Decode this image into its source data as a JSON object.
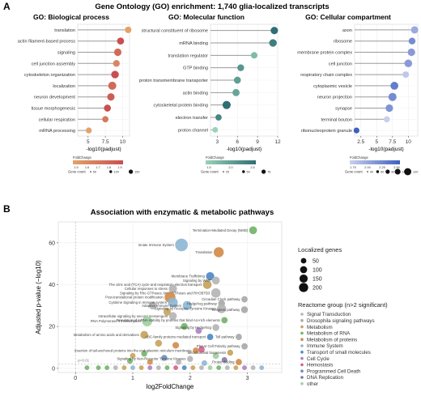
{
  "panel_a": {
    "letter": "A",
    "title": "Gene Ontology (GO) enrichment: 1,740 glia-localized transcripts",
    "legend_foldchange_title": "FoldChange",
    "legend_genecount_title": "Gene count",
    "xlabel": "-log10(padjust)",
    "colors": {
      "bp": [
        "#e2a36a",
        "#c94f4f"
      ],
      "mf": [
        "#9ad2b8",
        "#2e6f73"
      ],
      "cc": [
        "#c8d0ee",
        "#3e5fbf"
      ]
    }
  },
  "panel_b": {
    "letter": "B",
    "title": "Association with enzymatic & metabolic pathways",
    "xlabel": "log2FoldChange",
    "ylabel": "Adjusted p-value (−log10)",
    "threshold_label": "p=0.01",
    "size_legend_title": "Localized genes",
    "size_legend_values": [
      "50",
      "100",
      "150",
      "200"
    ],
    "group_legend_title": "Reactome group (n>2 significant)",
    "groups": [
      {
        "name": "Signal Transduction",
        "color": "#b5b5b5"
      },
      {
        "name": "Drosophila signaling pathways",
        "color": "#a9a9a9"
      },
      {
        "name": "Metabolism",
        "color": "#c6a35a"
      },
      {
        "name": "Metabolism of RNA",
        "color": "#73b46a"
      },
      {
        "name": "Metabolism of proteins",
        "color": "#d08c4b"
      },
      {
        "name": "Immune System",
        "color": "#8fb7d6"
      },
      {
        "name": "Transport of small molecules",
        "color": "#4f89c4"
      },
      {
        "name": "Cell Cycle",
        "color": "#b07fc2"
      },
      {
        "name": "Hemostasis",
        "color": "#d3608c"
      },
      {
        "name": "Programmed Cell Death",
        "color": "#6a8fb5"
      },
      {
        "name": "DNA Replication",
        "color": "#7a7aa8"
      },
      {
        "name": "other",
        "color": "#9fcfa0"
      }
    ]
  },
  "chart_data": [
    {
      "type": "lollipop",
      "title": "GO: Biological process",
      "xlabel": "-log10(padjust)",
      "xlim": [
        3.5,
        11
      ],
      "xticks": [
        5.0,
        7.5,
        10.0
      ],
      "categories": [
        "translation",
        "actin filament-based process",
        "signaling",
        "cell junction assembly",
        "cytoskeleton organization",
        "localization",
        "neuron development",
        "tissue morphogenesis",
        "cellular respiration",
        "mRNA processing"
      ],
      "values": [
        10.8,
        9.7,
        9.3,
        9.1,
        8.9,
        8.5,
        8.3,
        7.8,
        7.5,
        5.1
      ],
      "fold_change": [
        1.5,
        1.8,
        1.7,
        1.6,
        1.8,
        1.7,
        1.75,
        1.8,
        1.65,
        1.5
      ],
      "gene_count": [
        60,
        80,
        100,
        70,
        110,
        140,
        100,
        80,
        50,
        40
      ],
      "foldchange_legend_ticks": [
        "1.5",
        "1.6",
        "1.7",
        "1.8",
        "1.9"
      ],
      "genecount_legend_ticks": [
        "50",
        "100",
        "150"
      ]
    },
    {
      "type": "lollipop",
      "title": "GO: Molecular function",
      "xlabel": "-log10(padjust)",
      "xlim": [
        2,
        12
      ],
      "xticks": [
        3,
        6,
        9,
        12
      ],
      "categories": [
        "structural constituent of ribosome",
        "mRNA binding",
        "translation regulator",
        "GTP binding",
        "proton transmembrane transporter",
        "actin binding",
        "cytoskeletal protein binding",
        "electron transfer",
        "proton channel"
      ],
      "values": [
        11.5,
        11.3,
        8.5,
        6.5,
        6.0,
        5.8,
        4.4,
        3.2,
        2.7
      ],
      "fold_change": [
        2.8,
        2.6,
        1.8,
        2.3,
        2.2,
        2.1,
        2.8,
        2.5,
        1.5
      ],
      "gene_count": [
        50,
        55,
        30,
        35,
        40,
        45,
        70,
        25,
        15
      ],
      "foldchange_legend_ticks": [
        "1.5",
        "2.0",
        "2.5"
      ],
      "genecount_legend_ticks": [
        "25",
        "50",
        "75"
      ]
    },
    {
      "type": "lollipop",
      "title": "GO: Cellular compartment",
      "xlabel": "-log10(padjust)",
      "xlim": [
        1.5,
        11.5
      ],
      "xticks": [
        2.5,
        5.0,
        7.5,
        10.0
      ],
      "categories": [
        "axon",
        "ribosome",
        "membrane protein complex",
        "cell junction",
        "respiratory chain complex",
        "cytoplasmic vesicle",
        "neuron projection",
        "synapse",
        "terminal bouton",
        "ribonucleoprotein granule"
      ],
      "values": [
        11.0,
        10.6,
        10.5,
        10.0,
        9.6,
        7.8,
        7.5,
        7.0,
        6.6,
        1.8
      ],
      "fold_change": [
        2.0,
        2.2,
        2.1,
        2.1,
        1.8,
        2.3,
        2.2,
        2.15,
        1.75,
        2.5
      ],
      "gene_count": [
        80,
        60,
        90,
        100,
        50,
        110,
        120,
        90,
        40,
        30
      ],
      "foldchange_legend_ticks": [
        "1.75",
        "2.00",
        "2.25",
        "2.50"
      ],
      "genecount_legend_ticks": [
        "40",
        "60",
        "80",
        "100",
        "120"
      ]
    },
    {
      "type": "scatter",
      "title": "Association with enzymatic & metabolic pathways",
      "xlabel": "log2FoldChange",
      "ylabel": "Adjusted p-value (−log10)",
      "xlim": [
        -0.3,
        3.6
      ],
      "ylim": [
        -2,
        70
      ],
      "xticks": [
        0,
        1,
        2,
        3
      ],
      "yticks": [
        0,
        20,
        40,
        60
      ],
      "labeled_points": [
        {
          "label": "Innate Immune System",
          "x": 1.85,
          "y": 59,
          "size": 220,
          "group": "Immune System"
        },
        {
          "label": "Translation",
          "x": 2.5,
          "y": 55.5,
          "size": 120,
          "group": "Metabolism of proteins"
        },
        {
          "label": "Termination-Mediated Decay (NMD)",
          "x": 3.1,
          "y": 66,
          "size": 60,
          "group": "Metabolism of RNA"
        },
        {
          "label": "Membrane Trafficking",
          "x": 2.35,
          "y": 44,
          "size": 70,
          "group": "Transport of small molecules"
        },
        {
          "label": "The citric acid (TCA) cycle and respiratory electron transport",
          "x": 2.3,
          "y": 40,
          "size": 80,
          "group": "Metabolism"
        },
        {
          "label": "Signaling by WNT",
          "x": 2.45,
          "y": 42,
          "size": 60,
          "group": "Signal Transduction"
        },
        {
          "label": "Cellular responses to stress",
          "x": 1.7,
          "y": 38,
          "size": 70,
          "group": "Signal Transduction"
        },
        {
          "label": "Signaling by Rho GTPases, Miro GTPases and RHOBTB3",
          "x": 2.45,
          "y": 36,
          "size": 100,
          "group": "Signal Transduction"
        },
        {
          "label": "Circadian Clock pathway",
          "x": 2.95,
          "y": 33,
          "size": 30,
          "group": "Drosophila signaling pathways"
        },
        {
          "label": "Post-translational protein modification",
          "x": 1.65,
          "y": 34,
          "size": 150,
          "group": "Metabolism of proteins"
        },
        {
          "label": "Cytokine Signaling in Immune system",
          "x": 1.7,
          "y": 31.5,
          "size": 110,
          "group": "Immune System"
        },
        {
          "label": "Adaptive Immune System",
          "x": 1.95,
          "y": 30,
          "size": 90,
          "group": "Immune System"
        },
        {
          "label": "Hedgehog pathway",
          "x": 2.55,
          "y": 31,
          "size": 40,
          "group": "Drosophila signaling pathways"
        },
        {
          "label": "Signaling by Receptor Tyrosine Kinases",
          "x": 2.55,
          "y": 28.5,
          "size": 90,
          "group": "Signal Transduction"
        },
        {
          "label": "Wingless pathway",
          "x": 2.95,
          "y": 28,
          "size": 40,
          "group": "Drosophila signaling pathways"
        },
        {
          "label": "Intracellular signaling by second messengers",
          "x": 1.7,
          "y": 25,
          "size": 60,
          "group": "Signal Transduction"
        },
        {
          "label": "RNA Polymerase II Transcription",
          "x": 1.25,
          "y": 22.5,
          "size": 120,
          "group": "other"
        },
        {
          "label": "Regulation of mRNA stability by proteins that bind AU-rich elements",
          "x": 2.6,
          "y": 23,
          "size": 30,
          "group": "Metabolism of RNA"
        },
        {
          "label": "Signaling by Hedgehog",
          "x": 2.45,
          "y": 19.5,
          "size": 40,
          "group": "Signal Transduction"
        },
        {
          "label": "Metabolism of amino acids and derivatives",
          "x": 1.2,
          "y": 16,
          "size": 60,
          "group": "Metabolism"
        },
        {
          "label": "ABC-family proteins mediated transport",
          "x": 2.35,
          "y": 15,
          "size": 30,
          "group": "Transport of small molecules"
        },
        {
          "label": "Toll pathway",
          "x": 2.85,
          "y": 15,
          "size": 30,
          "group": "Drosophila signaling pathways"
        },
        {
          "label": "Planar Cell Polarity pathway",
          "x": 2.95,
          "y": 10.5,
          "size": 30,
          "group": "Drosophila signaling pathways"
        },
        {
          "label": "Insertion of tail-anchored proteins into the endoplasmic reticulum membrane",
          "x": 2.1,
          "y": 8.5,
          "size": 25,
          "group": "Metabolism of proteins"
        },
        {
          "label": "Mitochondrial biogenesis",
          "x": 2.7,
          "y": 7.5,
          "size": 25,
          "group": "Metabolism"
        },
        {
          "label": "Signaling by Non-Receptor Tyrosine Kinases",
          "x": 2.0,
          "y": 4.5,
          "size": 25,
          "group": "Signal Transduction"
        },
        {
          "label": "Protein folding",
          "x": 2.85,
          "y": 3,
          "size": 30,
          "group": "Metabolism of proteins"
        }
      ],
      "unlabeled_points": [
        {
          "x": 1.35,
          "y": 30,
          "size": 60,
          "group": "Signal Transduction"
        },
        {
          "x": 1.6,
          "y": 27,
          "size": 50,
          "group": "Metabolism"
        },
        {
          "x": 1.9,
          "y": 20,
          "size": 40,
          "group": "Metabolism of RNA"
        },
        {
          "x": 2.15,
          "y": 18,
          "size": 30,
          "group": "Cell Cycle"
        },
        {
          "x": 1.45,
          "y": 12,
          "size": 40,
          "group": "Metabolism"
        },
        {
          "x": 1.75,
          "y": 11,
          "size": 35,
          "group": "Metabolism of proteins"
        },
        {
          "x": 2.2,
          "y": 9,
          "size": 30,
          "group": "Hemostasis"
        },
        {
          "x": 2.45,
          "y": 6,
          "size": 30,
          "group": "other"
        },
        {
          "x": 1.2,
          "y": 7,
          "size": 25,
          "group": "Metabolism of RNA"
        },
        {
          "x": 1.0,
          "y": 6,
          "size": 20,
          "group": "Metabolism"
        },
        {
          "x": 1.55,
          "y": 5,
          "size": 25,
          "group": "Programmed Cell Death"
        },
        {
          "x": 2.6,
          "y": 4,
          "size": 20,
          "group": "DNA Replication"
        },
        {
          "x": 1.3,
          "y": 3,
          "size": 20,
          "group": "Metabolism of proteins"
        },
        {
          "x": 0.95,
          "y": 3.5,
          "size": 20,
          "group": "Metabolism of RNA"
        },
        {
          "x": 1.8,
          "y": 3,
          "size": 20,
          "group": "Signal Transduction"
        },
        {
          "x": 2.25,
          "y": 2.5,
          "size": 20,
          "group": "Immune System"
        },
        {
          "x": 0.4,
          "y": 0.3,
          "size": 10,
          "group": "Metabolism of RNA"
        },
        {
          "x": 0.55,
          "y": 0.3,
          "size": 10,
          "group": "Metabolism of RNA"
        },
        {
          "x": 0.7,
          "y": 0.3,
          "size": 10,
          "group": "Signal Transduction"
        },
        {
          "x": 0.85,
          "y": 0.3,
          "size": 10,
          "group": "Metabolism"
        },
        {
          "x": 1.0,
          "y": 0.3,
          "size": 10,
          "group": "Immune System"
        },
        {
          "x": 1.15,
          "y": 0.3,
          "size": 10,
          "group": "Metabolism"
        },
        {
          "x": 1.3,
          "y": 0.3,
          "size": 10,
          "group": "Cell Cycle"
        },
        {
          "x": 1.45,
          "y": 0.3,
          "size": 10,
          "group": "Signal Transduction"
        },
        {
          "x": 1.6,
          "y": 0.3,
          "size": 10,
          "group": "Metabolism of RNA"
        },
        {
          "x": 1.75,
          "y": 0.3,
          "size": 10,
          "group": "Hemostasis"
        },
        {
          "x": 1.9,
          "y": 0.3,
          "size": 10,
          "group": "Transport of small molecules"
        },
        {
          "x": 2.05,
          "y": 0.3,
          "size": 10,
          "group": "Metabolism"
        },
        {
          "x": 2.2,
          "y": 0.3,
          "size": 10,
          "group": "Signal Transduction"
        },
        {
          "x": 2.35,
          "y": 0.3,
          "size": 10,
          "group": "other"
        },
        {
          "x": 2.5,
          "y": 0.3,
          "size": 10,
          "group": "Metabolism of RNA"
        },
        {
          "x": 2.65,
          "y": 0.3,
          "size": 10,
          "group": "Signal Transduction"
        },
        {
          "x": 2.8,
          "y": 0.3,
          "size": 10,
          "group": "Metabolism"
        },
        {
          "x": 2.95,
          "y": 0.3,
          "size": 10,
          "group": "Cell Cycle"
        },
        {
          "x": 3.1,
          "y": 0.3,
          "size": 10,
          "group": "Signal Transduction"
        },
        {
          "x": 3.25,
          "y": 0.3,
          "size": 10,
          "group": "Immune System"
        },
        {
          "x": 0.2,
          "y": 0.3,
          "size": 10,
          "group": "Metabolism of RNA"
        }
      ]
    }
  ]
}
